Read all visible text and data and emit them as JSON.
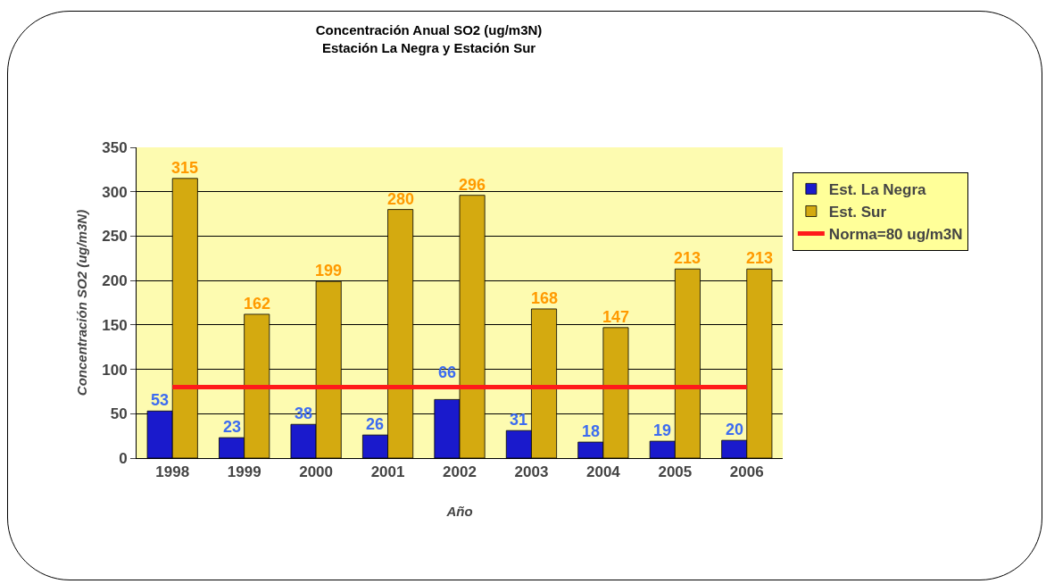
{
  "chart_data": {
    "type": "bar",
    "title": "Concentración Anual SO2 (ug/m3N)",
    "subtitle": "Estación La Negra y Estación Sur",
    "xlabel": "Año",
    "ylabel": "Concentración SO2 (ug/m3N)",
    "categories": [
      "1998",
      "1999",
      "2000",
      "2001",
      "2002",
      "2003",
      "2004",
      "2005",
      "2006"
    ],
    "series": [
      {
        "name": "Est. La Negra",
        "color": "#1a1acc",
        "values": [
          53,
          23,
          38,
          26,
          66,
          31,
          18,
          19,
          20
        ],
        "value_labels": [
          "53",
          "23",
          "38",
          "26",
          "66",
          "31",
          "18",
          "19",
          "20"
        ]
      },
      {
        "name": "Est. Sur",
        "color": "#d4aa10",
        "values": [
          315,
          162,
          199,
          280,
          296,
          168,
          147,
          213,
          213
        ],
        "value_labels": [
          "315",
          "162",
          "199",
          "280",
          "296",
          "168",
          "147",
          "213",
          "213"
        ]
      },
      {
        "name": "Norma=80 ug/m3N",
        "type": "line",
        "color": "#ff1a1a",
        "values": [
          80,
          80,
          80,
          80,
          80,
          80,
          80,
          80,
          80
        ]
      }
    ],
    "ylim": [
      0,
      350
    ],
    "yticks": [
      0,
      50,
      100,
      150,
      200,
      250,
      300,
      350
    ],
    "grid": "y",
    "legend": "right"
  }
}
